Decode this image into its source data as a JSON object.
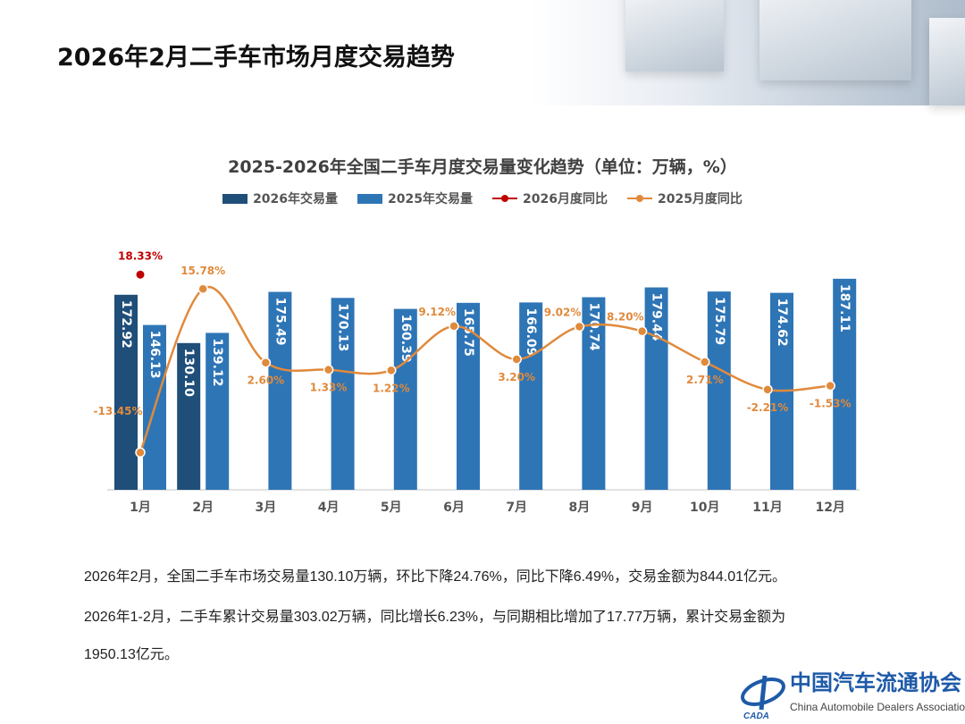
{
  "page_title": "2026年2月二手车市场月度交易趋势",
  "chart_data": {
    "type": "bar+line",
    "title": "2025-2026年全国二手车月度交易量变化趋势（单位：万辆，%）",
    "categories": [
      "1月",
      "2月",
      "3月",
      "4月",
      "5月",
      "6月",
      "7月",
      "8月",
      "9月",
      "10月",
      "11月",
      "12月"
    ],
    "legend_position": "top",
    "grid": false,
    "series": [
      {
        "name": "2026年交易量",
        "type": "bar",
        "color": "#1f4e79",
        "values": [
          172.92,
          130.1,
          null,
          null,
          null,
          null,
          null,
          null,
          null,
          null,
          null,
          null
        ]
      },
      {
        "name": "2025年交易量",
        "type": "bar",
        "color": "#2e75b6",
        "values": [
          146.13,
          139.12,
          175.49,
          170.13,
          160.39,
          165.75,
          166.09,
          170.74,
          179.44,
          175.79,
          174.62,
          187.11
        ]
      },
      {
        "name": "2026月度同比",
        "type": "line",
        "color": "#c00000",
        "values": [
          18.33,
          null,
          null,
          null,
          null,
          null,
          null,
          null,
          null,
          null,
          null,
          null
        ]
      },
      {
        "name": "2025月度同比",
        "type": "line",
        "color": "#e08a3c",
        "values": [
          -13.45,
          15.78,
          2.6,
          1.33,
          1.22,
          9.12,
          3.2,
          9.02,
          8.2,
          2.71,
          -2.21,
          -1.53
        ]
      }
    ]
  },
  "paragraphs": [
    "2026年2月，全国二手车市场交易量130.10万辆，环比下降24.76%，同比下降6.49%，交易金额为844.01亿元。",
    "2026年1-2月，二手车累计交易量303.02万辆，同比增长6.23%，与同期相比增加了17.77万辆，累计交易金额为",
    "1950.13亿元。"
  ],
  "logo": {
    "cn": "中国汽车流通协会",
    "en": "China Automobile Dealers Association",
    "mark": "CADA"
  }
}
